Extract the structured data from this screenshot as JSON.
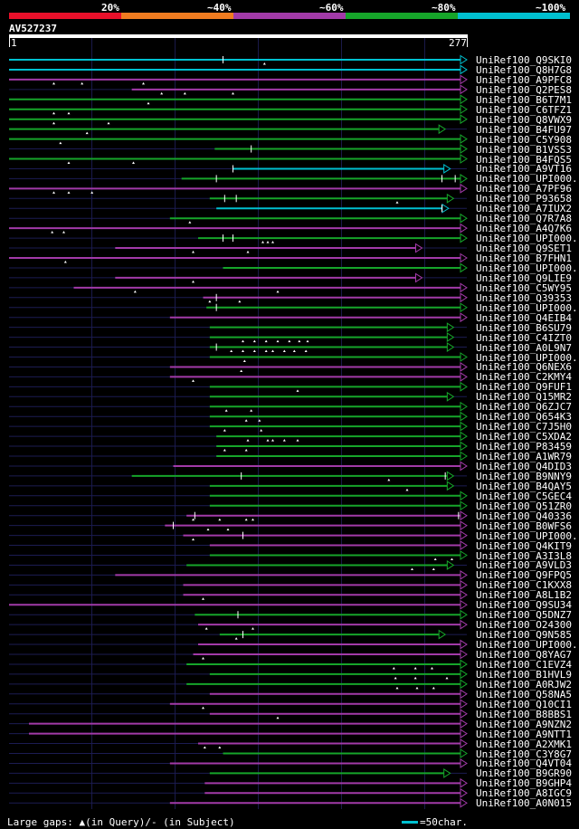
{
  "legend": {
    "labels": [
      "20%",
      "~40%",
      "~60%",
      "~80%",
      "~100%"
    ],
    "colors": [
      "#e8102a",
      "#f07c20",
      "#a23aa8",
      "#16a52a",
      "#00c0d0"
    ]
  },
  "query": {
    "id": "AV527237",
    "start": "1",
    "end": "277",
    "length": 277
  },
  "hits": [
    {
      "name": "UniRef100_Q9SKI0",
      "color": "#00c0d0",
      "start": 1,
      "end": 277,
      "dots": [
        155
      ],
      "bars": [
        130
      ]
    },
    {
      "name": "UniRef100_Q8H7G8",
      "color": "#00c0d0",
      "start": 1,
      "end": 277
    },
    {
      "name": "UniRef100_A9PFC8",
      "color": "#a23aa8",
      "start": 1,
      "end": 277,
      "dots": [
        28,
        45,
        82
      ]
    },
    {
      "name": "UniRef100_Q2PES8",
      "color": "#a23aa8",
      "start": 75,
      "end": 277,
      "dots": [
        93,
        107,
        136
      ]
    },
    {
      "name": "UniRef100_B6T7M1",
      "color": "#16a52a",
      "start": 1,
      "end": 277,
      "dots": [
        85
      ]
    },
    {
      "name": "UniRef100_C6TFZ1",
      "color": "#16a52a",
      "start": 1,
      "end": 277,
      "dots": [
        28,
        37
      ]
    },
    {
      "name": "UniRef100_Q8VWX9",
      "color": "#16a52a",
      "start": 1,
      "end": 277,
      "dots": [
        28,
        61
      ]
    },
    {
      "name": "UniRef100_B4FU97",
      "color": "#16a52a",
      "start": 1,
      "end": 264,
      "dots": [
        48
      ]
    },
    {
      "name": "UniRef100_C5Y908",
      "color": "#16a52a",
      "start": 1,
      "end": 277,
      "dots": [
        32
      ]
    },
    {
      "name": "UniRef100_B1VSS3",
      "color": "#16a52a",
      "start": 125,
      "end": 277,
      "bars": [
        147
      ]
    },
    {
      "name": "UniRef100_B4FQS5",
      "color": "#16a52a",
      "start": 1,
      "end": 277,
      "dots": [
        37,
        76
      ]
    },
    {
      "name": "UniRef100_A9VT16",
      "color": "#00c0d0",
      "start": 136,
      "end": 267,
      "bars": [
        136
      ]
    },
    {
      "name": "UniRef100_UPI000..",
      "color": "#16a52a",
      "start": 105,
      "end": 277,
      "bars": [
        126,
        262,
        270
      ]
    },
    {
      "name": "UniRef100_A7PF96",
      "color": "#a23aa8",
      "start": 1,
      "end": 277,
      "dots": [
        28,
        37,
        51
      ]
    },
    {
      "name": "UniRef100_P93658",
      "color": "#16a52a",
      "start": 122,
      "end": 269,
      "dots": [
        235
      ],
      "bars": [
        131,
        138
      ]
    },
    {
      "name": "UniRef100_A7IUX2",
      "color": "#00c0d0",
      "start": 126,
      "end": 266,
      "bars": [
        262
      ]
    },
    {
      "name": "UniRef100_Q7R7A8",
      "color": "#16a52a",
      "start": 98,
      "end": 277,
      "dots": [
        110
      ]
    },
    {
      "name": "UniRef100_A4Q7K6",
      "color": "#a23aa8",
      "start": 1,
      "end": 277,
      "dots": [
        27,
        34
      ]
    },
    {
      "name": "UniRef100_UPI000..",
      "color": "#16a52a",
      "start": 115,
      "end": 277,
      "dots": [
        154,
        157,
        160
      ],
      "bars": [
        130,
        136
      ]
    },
    {
      "name": "UniRef100_Q9SET1",
      "color": "#a23aa8",
      "start": 65,
      "end": 250,
      "dots": [
        112,
        145
      ]
    },
    {
      "name": "UniRef100_B7FHN1",
      "color": "#a23aa8",
      "start": 1,
      "end": 277,
      "dots": [
        35
      ]
    },
    {
      "name": "UniRef100_UPI000..",
      "color": "#16a52a",
      "start": 130,
      "end": 277
    },
    {
      "name": "UniRef100_Q9LIE9",
      "color": "#a23aa8",
      "start": 65,
      "end": 250,
      "dots": [
        112
      ]
    },
    {
      "name": "UniRef100_C5WY95",
      "color": "#a23aa8",
      "start": 40,
      "end": 277,
      "dots": [
        77,
        163
      ]
    },
    {
      "name": "UniRef100_Q39353",
      "color": "#a23aa8",
      "start": 118,
      "end": 277,
      "dots": [
        122,
        140
      ],
      "bars": [
        126
      ]
    },
    {
      "name": "UniRef100_UPI000..",
      "color": "#16a52a",
      "start": 120,
      "end": 277,
      "bars": [
        126
      ]
    },
    {
      "name": "UniRef100_Q4EIB4",
      "color": "#a23aa8",
      "start": 98,
      "end": 277
    },
    {
      "name": "UniRef100_B6SU79",
      "color": "#16a52a",
      "start": 122,
      "end": 269
    },
    {
      "name": "UniRef100_C4IZT0",
      "color": "#16a52a",
      "start": 122,
      "end": 269,
      "dots": [
        142,
        149,
        156,
        163,
        170,
        176,
        181
      ]
    },
    {
      "name": "UniRef100_A0L9N7",
      "color": "#16a52a",
      "start": 122,
      "end": 269,
      "dots": [
        135,
        142,
        149,
        156,
        160,
        167,
        173,
        180
      ],
      "bars": [
        126
      ]
    },
    {
      "name": "UniRef100_UPI000..",
      "color": "#16a52a",
      "start": 122,
      "end": 277,
      "dots": [
        143
      ]
    },
    {
      "name": "UniRef100_Q6NEX6",
      "color": "#a23aa8",
      "start": 98,
      "end": 277,
      "dots": [
        141
      ]
    },
    {
      "name": "UniRef100_C2KMY4",
      "color": "#a23aa8",
      "start": 98,
      "end": 277,
      "dots": [
        112
      ]
    },
    {
      "name": "UniRef100_Q9FUF1",
      "color": "#16a52a",
      "start": 122,
      "end": 277,
      "dots": [
        175
      ]
    },
    {
      "name": "UniRef100_Q15MR2",
      "color": "#16a52a",
      "start": 122,
      "end": 269
    },
    {
      "name": "UniRef100_Q6ZJC7",
      "color": "#16a52a",
      "start": 122,
      "end": 277,
      "dots": [
        132,
        147
      ]
    },
    {
      "name": "UniRef100_Q654K3",
      "color": "#16a52a",
      "start": 122,
      "end": 277,
      "dots": [
        144,
        152
      ]
    },
    {
      "name": "UniRef100_C7J5H0",
      "color": "#16a52a",
      "start": 122,
      "end": 277,
      "dots": [
        131,
        153
      ]
    },
    {
      "name": "UniRef100_C5XDA2",
      "color": "#16a52a",
      "start": 126,
      "end": 277,
      "dots": [
        145,
        157,
        160,
        167,
        175
      ]
    },
    {
      "name": "UniRef100_P83459",
      "color": "#16a52a",
      "start": 126,
      "end": 277,
      "dots": [
        131,
        144
      ]
    },
    {
      "name": "UniRef100_A1WR79",
      "color": "#16a52a",
      "start": 126,
      "end": 277
    },
    {
      "name": "UniRef100_Q4DID3",
      "color": "#a23aa8",
      "start": 100,
      "end": 277
    },
    {
      "name": "UniRef100_B9NNY9",
      "color": "#16a52a",
      "start": 75,
      "end": 269,
      "dots": [
        230
      ],
      "bars": [
        141,
        264
      ]
    },
    {
      "name": "UniRef100_B4QAY5",
      "color": "#16a52a",
      "start": 122,
      "end": 269,
      "dots": [
        241
      ]
    },
    {
      "name": "UniRef100_C5GEC4",
      "color": "#16a52a",
      "start": 122,
      "end": 277
    },
    {
      "name": "UniRef100_Q51ZR0",
      "color": "#16a52a",
      "start": 122,
      "end": 277
    },
    {
      "name": "UniRef100_Q40336",
      "color": "#a23aa8",
      "start": 108,
      "end": 277,
      "dots": [
        112,
        128,
        144,
        148
      ],
      "bars": [
        113,
        272
      ]
    },
    {
      "name": "UniRef100_B0WFS6",
      "color": "#a23aa8",
      "start": 95,
      "end": 277,
      "dots": [
        121,
        133
      ],
      "bars": [
        100
      ]
    },
    {
      "name": "UniRef100_UPI000..",
      "color": "#a23aa8",
      "start": 106,
      "end": 277,
      "dots": [
        112
      ],
      "bars": [
        142
      ]
    },
    {
      "name": "UniRef100_Q4KIT9",
      "color": "#a23aa8",
      "start": 122,
      "end": 277
    },
    {
      "name": "UniRef100_A3I3L8",
      "color": "#16a52a",
      "start": 122,
      "end": 277,
      "dots": [
        258,
        268
      ]
    },
    {
      "name": "UniRef100_A9VLD3",
      "color": "#16a52a",
      "start": 108,
      "end": 269,
      "dots": [
        244,
        257
      ]
    },
    {
      "name": "UniRef100_Q9FPQ5",
      "color": "#a23aa8",
      "start": 65,
      "end": 277
    },
    {
      "name": "UniRef100_C1KXX8",
      "color": "#a23aa8",
      "start": 106,
      "end": 277
    },
    {
      "name": "UniRef100_A8L1B2",
      "color": "#a23aa8",
      "start": 106,
      "end": 277,
      "dots": [
        118
      ]
    },
    {
      "name": "UniRef100_Q9SU34",
      "color": "#a23aa8",
      "start": 1,
      "end": 277
    },
    {
      "name": "UniRef100_Q5DNZ7",
      "color": "#16a52a",
      "start": 113,
      "end": 277,
      "bars": [
        139
      ]
    },
    {
      "name": "UniRef100_O24300",
      "color": "#a23aa8",
      "start": 115,
      "end": 277,
      "dots": [
        120,
        148
      ]
    },
    {
      "name": "UniRef100_Q9N585",
      "color": "#16a52a",
      "start": 128,
      "end": 264,
      "dots": [
        138
      ],
      "bars": [
        142
      ]
    },
    {
      "name": "UniRef100_UPI000..",
      "color": "#a23aa8",
      "start": 115,
      "end": 277
    },
    {
      "name": "UniRef100_Q8YAG7",
      "color": "#a23aa8",
      "start": 112,
      "end": 277,
      "dots": [
        118
      ]
    },
    {
      "name": "UniRef100_C1EVZ4",
      "color": "#16a52a",
      "start": 108,
      "end": 277,
      "dots": [
        233,
        246,
        256
      ]
    },
    {
      "name": "UniRef100_B1HVL9",
      "color": "#16a52a",
      "start": 122,
      "end": 277,
      "dots": [
        234,
        246,
        265
      ]
    },
    {
      "name": "UniRef100_A0RJW2",
      "color": "#16a52a",
      "start": 108,
      "end": 277,
      "dots": [
        235,
        247,
        257
      ]
    },
    {
      "name": "UniRef100_Q58NA5",
      "color": "#a23aa8",
      "start": 122,
      "end": 277
    },
    {
      "name": "UniRef100_Q10CI1",
      "color": "#a23aa8",
      "start": 98,
      "end": 277,
      "dots": [
        118
      ]
    },
    {
      "name": "UniRef100_B8BBS1",
      "color": "#a23aa8",
      "start": 122,
      "end": 277,
      "dots": [
        163
      ]
    },
    {
      "name": "UniRef100_A9NZN2",
      "color": "#a23aa8",
      "start": 13,
      "end": 277
    },
    {
      "name": "UniRef100_A9NTT1",
      "color": "#a23aa8",
      "start": 13,
      "end": 277
    },
    {
      "name": "UniRef100_A2XMK1",
      "color": "#a23aa8",
      "start": 115,
      "end": 277,
      "dots": [
        119,
        128
      ]
    },
    {
      "name": "UniRef100_C3Y8G7",
      "color": "#16a52a",
      "start": 130,
      "end": 277
    },
    {
      "name": "UniRef100_Q4VT04",
      "color": "#a23aa8",
      "start": 98,
      "end": 277
    },
    {
      "name": "UniRef100_B9GR90",
      "color": "#16a52a",
      "start": 122,
      "end": 267
    },
    {
      "name": "UniRef100_B9GHP4",
      "color": "#a23aa8",
      "start": 119,
      "end": 277
    },
    {
      "name": "UniRef100_A8IGC9",
      "color": "#a23aa8",
      "start": 119,
      "end": 277
    },
    {
      "name": "UniRef100_A0N015",
      "color": "#a23aa8",
      "start": 98,
      "end": 277
    }
  ],
  "footer": {
    "gaps_text": "Large gaps: ▲(in Query)/- (in Subject)",
    "scale_text": "=50char."
  }
}
